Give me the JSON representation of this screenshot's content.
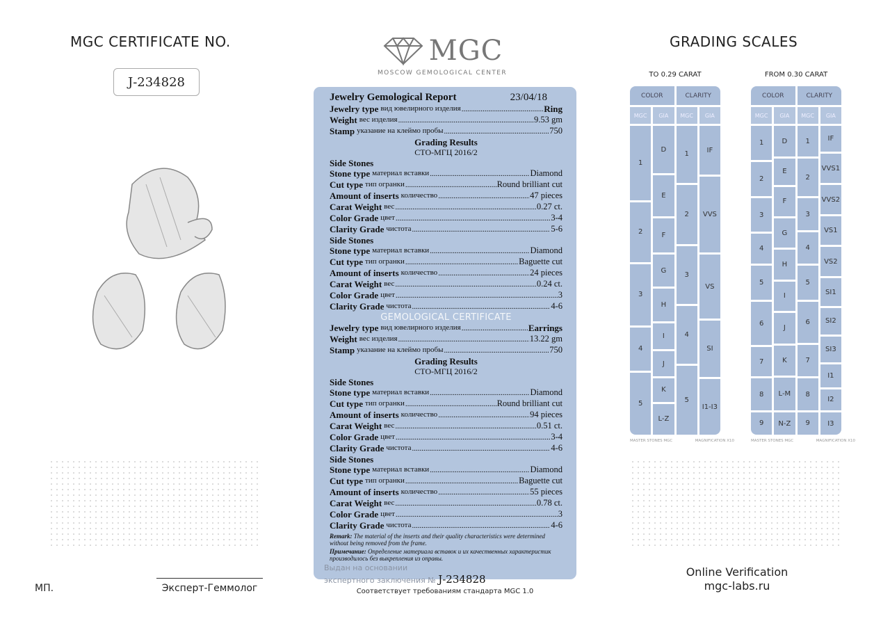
{
  "left": {
    "title": "MGC CERTIFICATE NO.",
    "cert_no": "J-234828",
    "stamp": "МП.",
    "expert": "Эксперт-Геммолог"
  },
  "logo": {
    "text": "MGC",
    "subtitle": "MOSCOW GEMOLOGICAL CENTER",
    "icon": "diamond-icon"
  },
  "report": {
    "title": "Jewelry Gemological Report",
    "date": "23/04/18",
    "watermark": "GEMOLOGICAL CERTIFICATE",
    "rows": [
      {
        "t": "kv",
        "l": "Jewelry type",
        "ru": "вид ювелирного изделия",
        "v": "Ring",
        "bold": true
      },
      {
        "t": "kv",
        "l": "Weight",
        "ru": "вес изделия",
        "v": "9.53 gm"
      },
      {
        "t": "kv",
        "l": "Stamp",
        "ru": "указание на клеймо пробы",
        "v": "750"
      },
      {
        "t": "c",
        "v": "Grading Results"
      },
      {
        "t": "c2",
        "v": "СТО-МГЦ 2016/2"
      },
      {
        "t": "h",
        "v": "Side Stones"
      },
      {
        "t": "kv",
        "l": "Stone type",
        "ru": "материал вставки",
        "v": "Diamond"
      },
      {
        "t": "kv",
        "l": "Cut type",
        "ru": "тип огранки",
        "v": "Round brilliant cut"
      },
      {
        "t": "kv",
        "l": "Amount of inserts",
        "ru": "количество",
        "v": "47 pieces"
      },
      {
        "t": "kv",
        "l": "Carat Weight",
        "ru": "вес",
        "v": "0.27 ct."
      },
      {
        "t": "kv",
        "l": "Color Grade",
        "ru": "цвет",
        "v": "3-4"
      },
      {
        "t": "kv",
        "l": "Clarity Grade",
        "ru": "чистота",
        "v": "5-6"
      },
      {
        "t": "h",
        "v": "Side Stones"
      },
      {
        "t": "kv",
        "l": "Stone type",
        "ru": "материал вставки",
        "v": "Diamond"
      },
      {
        "t": "kv",
        "l": "Cut type",
        "ru": "тип огранки",
        "v": "Baguette cut"
      },
      {
        "t": "kv",
        "l": "Amount of inserts",
        "ru": "количество",
        "v": "24 pieces"
      },
      {
        "t": "kv",
        "l": "Carat Weight",
        "ru": "вес",
        "v": "0.24 ct."
      },
      {
        "t": "kv",
        "l": "Color Grade",
        "ru": "цвет",
        "v": "3"
      },
      {
        "t": "kv",
        "l": "Clarity Grade",
        "ru": "чистота",
        "v": "4-6"
      },
      {
        "t": "sp",
        "v": ""
      },
      {
        "t": "kv",
        "l": "Jewelry type",
        "ru": "вид ювелирного изделия",
        "v": "Earrings",
        "bold": true
      },
      {
        "t": "kv",
        "l": "Weight",
        "ru": "вес изделия",
        "v": "13.22 gm"
      },
      {
        "t": "kv",
        "l": "Stamp",
        "ru": "указание на клеймо пробы",
        "v": "750"
      },
      {
        "t": "c",
        "v": "Grading Results"
      },
      {
        "t": "c2",
        "v": "СТО-МГЦ 2016/2"
      },
      {
        "t": "h",
        "v": "Side Stones"
      },
      {
        "t": "kv",
        "l": "Stone type",
        "ru": "материал вставки",
        "v": "Diamond"
      },
      {
        "t": "kv",
        "l": "Cut type",
        "ru": "тип огранки",
        "v": "Round brilliant cut"
      },
      {
        "t": "kv",
        "l": "Amount of inserts",
        "ru": "количество",
        "v": "94 pieces"
      },
      {
        "t": "kv",
        "l": "Carat Weight",
        "ru": "вес",
        "v": "0.51 ct."
      },
      {
        "t": "kv",
        "l": "Color Grade",
        "ru": "цвет",
        "v": "3-4"
      },
      {
        "t": "kv",
        "l": "Clarity Grade",
        "ru": "чистота",
        "v": "4-6"
      },
      {
        "t": "h",
        "v": "Side Stones"
      },
      {
        "t": "kv",
        "l": "Stone type",
        "ru": "материал вставки",
        "v": "Diamond"
      },
      {
        "t": "kv",
        "l": "Cut type",
        "ru": "тип огранки",
        "v": "Baguette cut"
      },
      {
        "t": "kv",
        "l": "Amount of inserts",
        "ru": "количество",
        "v": "55 pieces"
      },
      {
        "t": "kv",
        "l": "Carat Weight",
        "ru": "вес",
        "v": "0.78 ct."
      },
      {
        "t": "kv",
        "l": "Color Grade",
        "ru": "цвет",
        "v": "3"
      },
      {
        "t": "kv",
        "l": "Clarity Grade",
        "ru": "чистота",
        "v": "4-6"
      }
    ],
    "remark_label": "Remark:",
    "remark": "The material of the inserts and their quality characteristics were determined without being removed from the frame.",
    "remark_ru_label": "Примечание:",
    "remark_ru": "Определение материала вставок и их качественных характеристик производилось без выкрепления из оправы.",
    "issued_line1": "Выдан на основании",
    "issued_line2": "экспертного заключения №",
    "issued_no": "J-234828"
  },
  "footer_center": "Соответствует требованиям стандарта MGC 1.0",
  "right": {
    "title": "GRADING SCALES",
    "online": "Online Verification",
    "site": "mgc-labs.ru",
    "scales": [
      {
        "caption": "TO 0.29 CARAT",
        "header": [
          "COLOR",
          "CLARITY"
        ],
        "sub": [
          "MGC",
          "GIA",
          "MGC",
          "GIA"
        ],
        "columns": [
          [
            "1",
            "2",
            "3",
            "4",
            "5"
          ],
          [
            "D",
            "E",
            "F",
            "G",
            "H",
            "I",
            "J",
            "K",
            "L-Z"
          ],
          [
            "1",
            "2",
            "3",
            "4",
            "5"
          ],
          [
            "IF",
            "VVS",
            "VS",
            "SI",
            "I1-I3"
          ]
        ],
        "footer": [
          "MASTER STONES MGC",
          "MAGNIFICATION X10"
        ]
      },
      {
        "caption": "FROM  0.30 CARAT",
        "header": [
          "COLOR",
          "CLARITY"
        ],
        "sub": [
          "MGC",
          "GIA",
          "MGC",
          "GIA"
        ],
        "columns": [
          [
            "1",
            "2",
            "3",
            "4",
            "5",
            "6",
            "7",
            "8",
            "9"
          ],
          [
            "D",
            "E",
            "F",
            "G",
            "H",
            "I",
            "J",
            "K",
            "L-M",
            "N-Z"
          ],
          [
            "1",
            "2",
            "3",
            "4",
            "5",
            "6",
            "7",
            "8",
            "9"
          ],
          [
            "IF",
            "VVS1",
            "VVS2",
            "VS1",
            "VS2",
            "SI1",
            "SI2",
            "SI3",
            "I1",
            "I2",
            "I3"
          ]
        ],
        "footer": [
          "MASTER STONES MGC",
          "MAGNIFICATION X10"
        ]
      }
    ]
  },
  "colors": {
    "report_bg": "#b3c5de",
    "scale_cell": "#a9bcd8"
  }
}
